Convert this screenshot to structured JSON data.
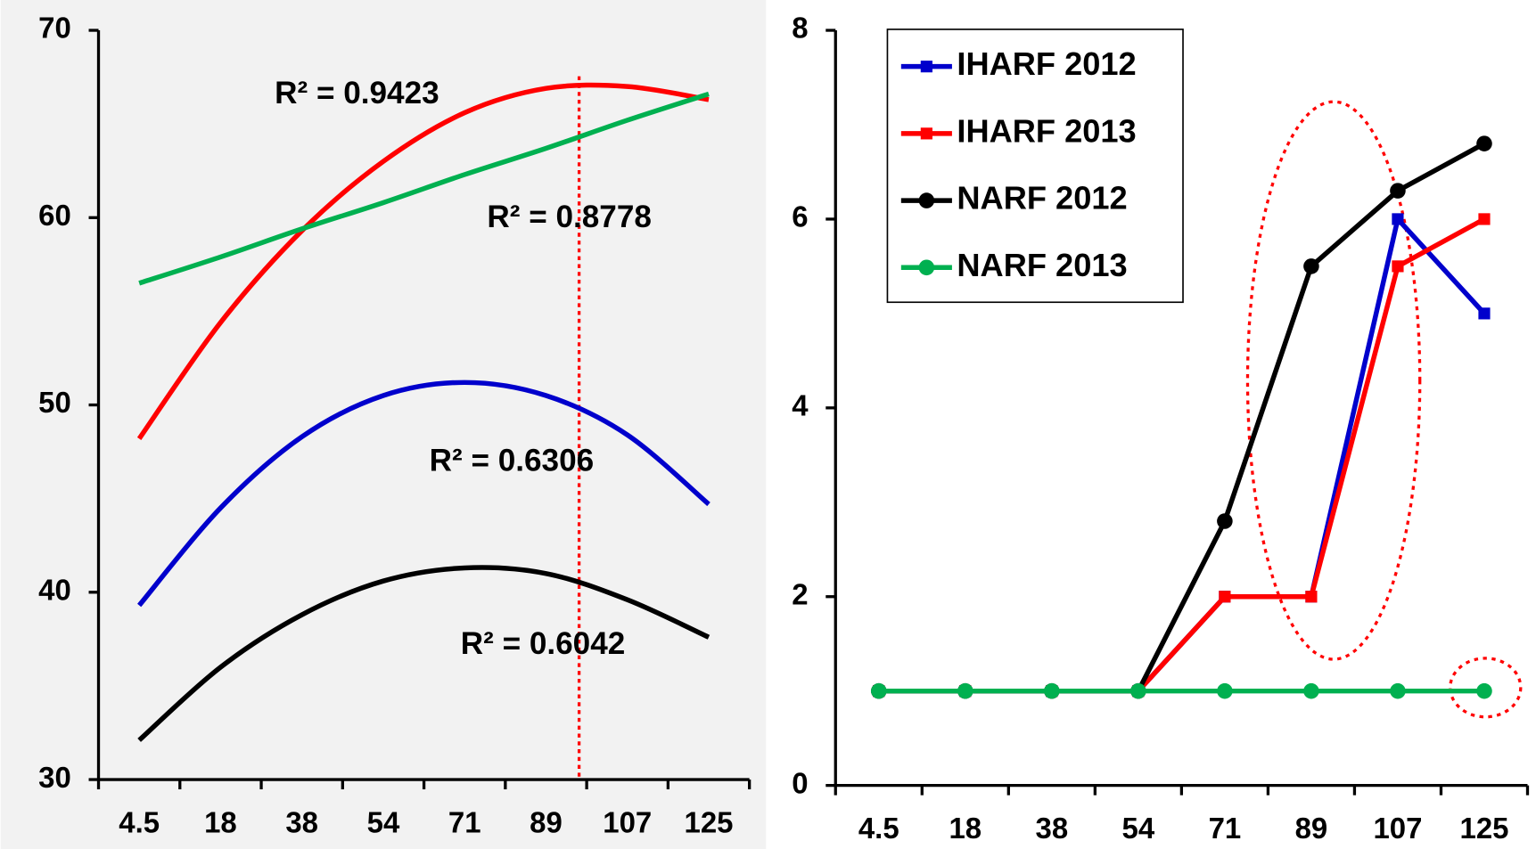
{
  "chart_data": [
    {
      "type": "line",
      "smooth": true,
      "categories": [
        "4.5",
        "18",
        "38",
        "54",
        "71",
        "89",
        "107",
        "125"
      ],
      "ylim": [
        30,
        70
      ],
      "yticks": [
        30,
        40,
        50,
        60,
        70
      ],
      "annotations": [
        "R² = 0.9423",
        "R² = 0.8778",
        "R² = 0.6306",
        "R² = 0.6042"
      ],
      "series": [
        {
          "color": "#ff0000",
          "values": [
            48.2,
            54.4,
            59.3,
            63.0,
            65.6,
            66.9,
            67.0,
            66.3
          ]
        },
        {
          "color": "#00b050",
          "values": [
            56.5,
            57.9,
            59.4,
            60.8,
            62.3,
            63.7,
            65.2,
            66.6
          ]
        },
        {
          "color": "#0000cc",
          "values": [
            39.3,
            44.5,
            48.3,
            50.5,
            51.2,
            50.5,
            48.4,
            44.7
          ]
        },
        {
          "color": "#000000",
          "values": [
            32.1,
            36.0,
            38.8,
            40.6,
            41.3,
            41.0,
            39.6,
            37.6
          ]
        }
      ]
    },
    {
      "type": "line",
      "smooth": false,
      "categories": [
        "4.5",
        "18",
        "38",
        "54",
        "71",
        "89",
        "107",
        "125"
      ],
      "ylim": [
        0,
        8
      ],
      "yticks": [
        0,
        2,
        4,
        6,
        8
      ],
      "legend": "top-left",
      "series": [
        {
          "name": "IHARF 2012",
          "color": "#0000cc",
          "marker": "square",
          "values": [
            1,
            1,
            1,
            1,
            2,
            2,
            6,
            5
          ]
        },
        {
          "name": "IHARF 2013",
          "color": "#ff0000",
          "marker": "square",
          "values": [
            1,
            1,
            1,
            1,
            2,
            2,
            5.5,
            6
          ]
        },
        {
          "name": "NARF 2012",
          "color": "#000000",
          "marker": "circle",
          "values": [
            1,
            1,
            1,
            1,
            2.8,
            5.5,
            6.3,
            6.8
          ]
        },
        {
          "name": "NARF 2013",
          "color": "#00b050",
          "marker": "circle",
          "values": [
            1,
            1,
            1,
            1,
            1,
            1,
            1,
            1
          ]
        }
      ]
    }
  ]
}
